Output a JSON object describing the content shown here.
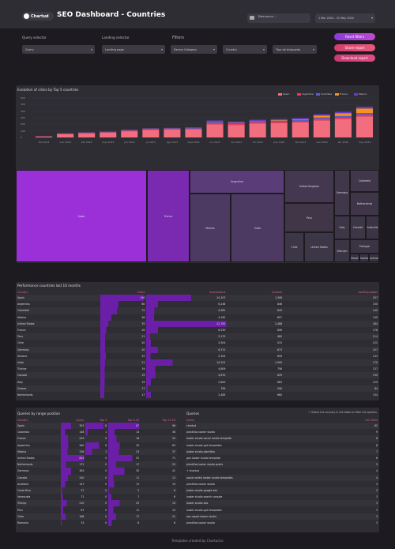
{
  "header": {
    "logo": "Chartud",
    "title": "SEO Dashboard - Countries",
    "data_source": "Data source ...",
    "date_range": "1 Mar 2024 - 31 May 2024"
  },
  "controls": {
    "query_label": "Query selector",
    "landing_label": "Landing selector",
    "filters_label": "Filters",
    "query_sel": "Query",
    "landing_sel": "Landing page",
    "device": "Device Category",
    "country": "Country",
    "tipo": "Tipo de búsqueda",
    "reset": "Reset filters",
    "share": "Share report",
    "download": "Download report"
  },
  "colors": {
    "spain": "#f26d7d",
    "argentina": "#ee3a5e",
    "colombia": "#5a5ec9",
    "france": "#f4931f",
    "mexico": "#6a3bc8"
  },
  "chart_data": {
    "type": "bar",
    "title": "Evolution of clicks by Top 5 countries",
    "legend": [
      "Spain",
      "Argentina",
      "Colombia",
      "France",
      "Mexico"
    ],
    "categories": [
      "feb 2023",
      "mar 2023",
      "abr 2023",
      "may 2023",
      "jun 2023",
      "jul 2023",
      "ago 2023",
      "sept 2023",
      "oct 2023",
      "nov 2023",
      "dic 2023",
      "ene 2024",
      "feb 2024",
      "mar 2024",
      "abr 2024",
      "may 2024"
    ],
    "yticks": [
      "60K",
      "50K",
      "40K",
      "30K",
      "20K",
      "10K",
      "0"
    ],
    "ylim": [
      0,
      60000
    ],
    "series": [
      {
        "name": "Spain",
        "values": [
          1500,
          5200,
          6400,
          7200,
          9500,
          11500,
          12000,
          12500,
          20000,
          19000,
          21000,
          22000,
          23000,
          26000,
          28000,
          32000
        ]
      },
      {
        "name": "Argentina",
        "values": [
          200,
          500,
          600,
          700,
          800,
          900,
          900,
          1000,
          2000,
          1800,
          2000,
          1900,
          2100,
          2300,
          2400,
          2600
        ]
      },
      {
        "name": "Colombia",
        "values": [
          100,
          400,
          500,
          600,
          700,
          800,
          800,
          900,
          1800,
          1600,
          1800,
          1800,
          1900,
          2000,
          2200,
          2400
        ]
      },
      {
        "name": "France",
        "values": [
          50,
          100,
          150,
          200,
          250,
          300,
          300,
          300,
          500,
          500,
          600,
          700,
          800,
          3000,
          4000,
          7000
        ]
      },
      {
        "name": "Mexico",
        "values": [
          50,
          300,
          300,
          400,
          500,
          500,
          600,
          600,
          1500,
          1300,
          1500,
          1600,
          1700,
          2000,
          2300,
          2600
        ]
      }
    ]
  },
  "treemap": [
    "Spain",
    "France",
    "Argentina",
    "Mexico",
    "India",
    "United Kingdom",
    "Germany",
    "Colombia",
    "Peru",
    "Netherlands",
    "Canada",
    "Chile",
    "United States",
    "Italy",
    "Portugal",
    "Australia",
    "Vietnam",
    "Brazil",
    "Switzerland",
    "Venezuela"
  ],
  "perf": {
    "title": "Performance countries last 16 months",
    "cols": [
      "Country",
      "Clicks",
      "Impressions",
      "Queries",
      "Landing pages"
    ],
    "rows": [
      [
        "Spain",
        "190",
        "24,107",
        "1,308",
        "207"
      ],
      [
        "Argentina",
        "80",
        "6,246",
        "846",
        "150"
      ],
      [
        "Colombia",
        "72",
        "4,381",
        "645",
        "140"
      ],
      [
        "Mexico",
        "48",
        "4,162",
        "607",
        "149"
      ],
      [
        "United States",
        "35",
        "42,785",
        "2,488",
        "284"
      ],
      [
        "France",
        "26",
        "6,250",
        "806",
        "178"
      ],
      [
        "Peru",
        "21",
        "2,175",
        "480",
        "114"
      ],
      [
        "Chile",
        "20",
        "2,504",
        "513",
        "122"
      ],
      [
        "Germany",
        "20",
        "6,372",
        "673",
        "157"
      ],
      [
        "Ukraine",
        "25",
        "2,304",
        "659",
        "143"
      ],
      [
        "India",
        "21",
        "14,101",
        "1,500",
        "170"
      ],
      [
        "Türkiye",
        "19",
        "4,809",
        "756",
        "137"
      ],
      [
        "Canada",
        "19",
        "4,870",
        "629",
        "130"
      ],
      [
        "Italy",
        "19",
        "2,600",
        "864",
        "129"
      ],
      [
        "Greece",
        "17",
        "795",
        "290",
        "84"
      ],
      [
        "Netherlands",
        "17",
        "2,485",
        "660",
        "134"
      ]
    ]
  },
  "range": {
    "title": "Queries by range position",
    "cols": [
      "Country",
      "Query",
      "Top 3",
      "Top 4-10",
      "Top 11-20"
    ],
    "rows": [
      [
        "Spain",
        "353",
        "8",
        "67",
        "96"
      ],
      [
        "Colombia",
        "148",
        "1",
        "14",
        "38"
      ],
      [
        "France",
        "249",
        "0",
        "18",
        "54"
      ],
      [
        "Argentina",
        "260",
        "6",
        "25",
        "63"
      ],
      [
        "Mexico",
        "236",
        "3",
        "23",
        "37"
      ],
      [
        "United States",
        "804",
        "0",
        "52",
        "71"
      ],
      [
        "Netherlands",
        "172",
        "0",
        "17",
        "20"
      ],
      [
        "Germany",
        "363",
        "0",
        "35",
        "41"
      ],
      [
        "Canada",
        "240",
        "0",
        "11",
        "12"
      ],
      [
        "Australia",
        "147",
        "0",
        "13",
        "19"
      ],
      [
        "Costa Rica",
        "37",
        "0",
        "2",
        "6"
      ],
      [
        "Venezuela",
        "71",
        "0",
        "7",
        "6"
      ],
      [
        "Türkiye",
        "210",
        "0",
        "25",
        "19"
      ],
      [
        "Peru",
        "87",
        "0",
        "11",
        "15"
      ],
      [
        "Chile",
        "168",
        "0",
        "17",
        "21"
      ],
      [
        "Romania",
        "33",
        "0",
        "8",
        "8"
      ]
    ]
  },
  "queries": {
    "title": "Queries",
    "hint": "Select the country in the table to filter the queries",
    "cols": [
      "Query",
      "Url Clicks"
    ],
    "rows": [
      [
        "chartud",
        "62"
      ],
      [
        "plantillas looker studio",
        "9"
      ],
      [
        "looker studio social media template",
        "8"
      ],
      [
        "looker studio ga4 templates",
        "8"
      ],
      [
        "looker studio plantillas",
        "7"
      ],
      [
        "ga4 looker studio template",
        "6"
      ],
      [
        "plantillas looker studio gratis",
        "5"
      ],
      [
        "+ chartud",
        "4"
      ],
      [
        "social media looker studio templates",
        "4"
      ],
      [
        "plantillas looker studio",
        "4"
      ],
      [
        "looker studio google ads",
        "3"
      ],
      [
        "looker studio search console",
        "3"
      ],
      [
        "looker studio ads",
        "3"
      ],
      [
        "looker studio ga4 templates",
        "3"
      ],
      [
        "seo report looker studio",
        "3"
      ],
      [
        "plantillas looker studio",
        "3"
      ]
    ]
  },
  "footer": "Templates created by Chartud.io"
}
